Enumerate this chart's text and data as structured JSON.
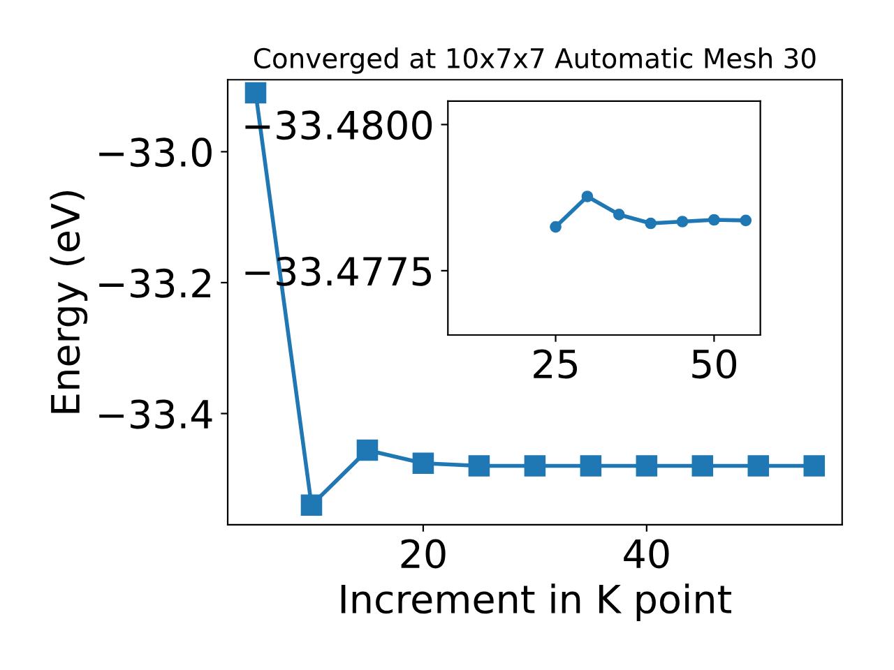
{
  "chart_data": [
    {
      "type": "line",
      "title": "Converged at 10x7x7 Automatic Mesh 30",
      "xlabel": "Increment in K point",
      "ylabel": "Energy (eV)",
      "x": [
        5,
        10,
        15,
        20,
        25,
        30,
        35,
        40,
        45,
        50,
        55
      ],
      "series": [
        {
          "color": "#1f77b4",
          "values": [
            -32.91,
            -33.54,
            -33.456,
            -33.476,
            -33.48,
            -33.48,
            -33.48,
            -33.48,
            -33.48,
            -33.48,
            -33.48
          ]
        }
      ],
      "xlim": [
        2.5,
        57.5
      ],
      "xticks": [
        20,
        40
      ],
      "ylim": [
        -33.57,
        -32.89
      ],
      "yticks": [
        {
          "value": -33.4,
          "label": "−33.4"
        },
        {
          "value": -33.2,
          "label": "−33.2"
        },
        {
          "value": -33.0,
          "label": "−33.0"
        }
      ],
      "marker": "square",
      "grid": false,
      "legend": false
    },
    {
      "type": "line",
      "x": [
        25,
        30,
        35,
        40,
        45,
        50,
        55
      ],
      "series": [
        {
          "color": "#1f77b4",
          "values": [
            -33.47825,
            -33.47877,
            -33.47846,
            -33.47831,
            -33.47834,
            -33.47837,
            -33.47836
          ]
        }
      ],
      "xlim": [
        8,
        57.3
      ],
      "xticks": [
        25,
        50
      ],
      "ylim": [
        -33.4764,
        -33.4804
      ],
      "yticks": [
        {
          "value": -33.48,
          "label": "−33.4800"
        },
        {
          "value": -33.4775,
          "label": "−33.4775"
        }
      ],
      "marker": "circle",
      "grid": false,
      "legend": false
    }
  ]
}
